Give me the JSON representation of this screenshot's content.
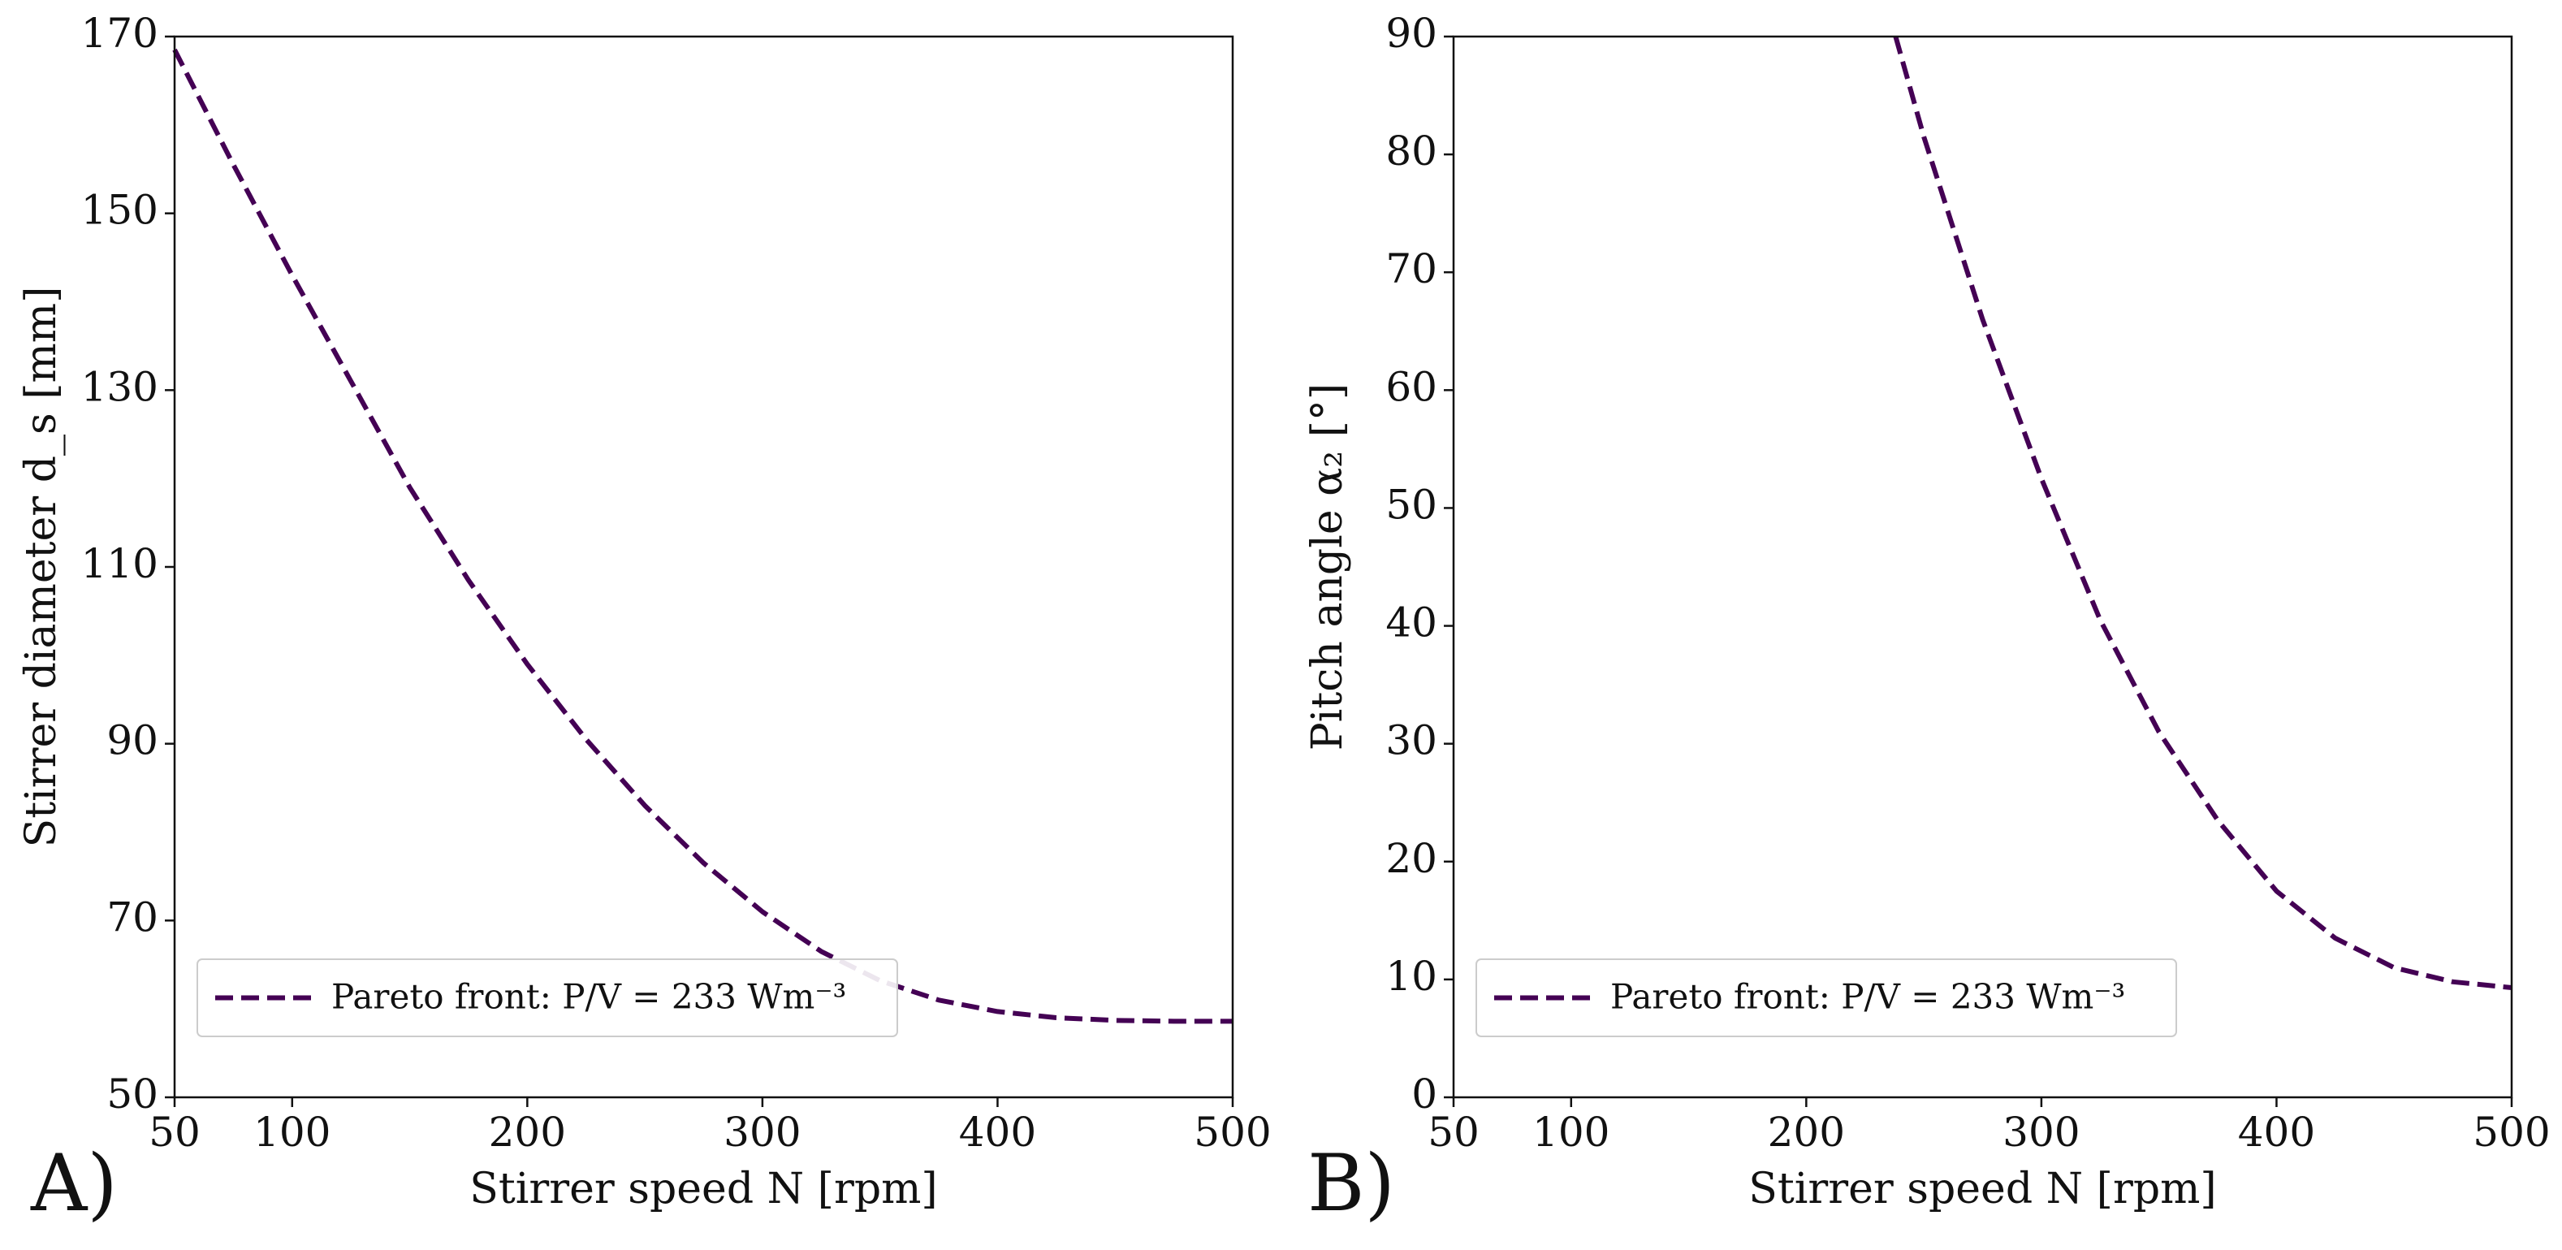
{
  "chart_data": [
    {
      "type": "line",
      "panel_label": "A)",
      "xlabel": "Stirrer speed N [rpm]",
      "ylabel": "Stirrer diameter d_s [mm]",
      "xlim": [
        50,
        500
      ],
      "ylim": [
        50,
        170
      ],
      "xticks": [
        50,
        100,
        200,
        300,
        400,
        500
      ],
      "yticks": [
        50,
        70,
        90,
        110,
        130,
        150,
        170
      ],
      "grid": false,
      "legend": {
        "position": "bottom-left",
        "entries": [
          "Pareto front: P/V = 233 Wm⁻³"
        ]
      },
      "series": [
        {
          "name": "Pareto front: P/V = 233 Wm⁻³",
          "color": "#440154",
          "style": "dashed",
          "x": [
            50,
            75,
            100,
            125,
            150,
            175,
            200,
            225,
            250,
            275,
            300,
            325,
            350,
            375,
            400,
            425,
            450,
            475,
            500
          ],
          "y": [
            168.5,
            155.5,
            143.0,
            131.0,
            119.0,
            108.5,
            99.0,
            90.5,
            83.0,
            76.5,
            71.0,
            66.5,
            63.2,
            61.0,
            59.7,
            59.0,
            58.7,
            58.6,
            58.6
          ]
        }
      ]
    },
    {
      "type": "line",
      "panel_label": "B)",
      "xlabel": "Stirrer speed N [rpm]",
      "ylabel": "Pitch angle α₂ [°]",
      "xlim": [
        50,
        500
      ],
      "ylim": [
        0,
        90
      ],
      "xticks": [
        50,
        100,
        200,
        300,
        400,
        500
      ],
      "yticks": [
        0,
        10,
        20,
        30,
        40,
        50,
        60,
        70,
        80,
        90
      ],
      "grid": false,
      "legend": {
        "position": "bottom-left",
        "entries": [
          "Pareto front: P/V = 233 Wm⁻³"
        ]
      },
      "series": [
        {
          "name": "Pareto front: P/V = 233 Wm⁻³",
          "color": "#440154",
          "style": "dashed",
          "x": [
            238,
            250,
            275,
            300,
            325,
            350,
            375,
            400,
            425,
            450,
            475,
            500
          ],
          "y": [
            90,
            81.5,
            66.0,
            52.5,
            40.5,
            31.0,
            23.5,
            17.5,
            13.5,
            11.0,
            9.8,
            9.3
          ]
        }
      ]
    }
  ]
}
